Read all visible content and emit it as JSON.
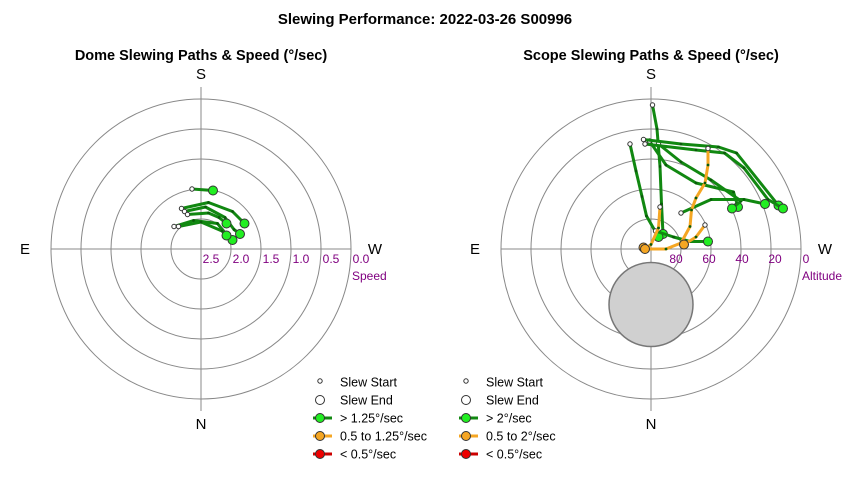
{
  "title": "Slewing Performance: 2022-03-26 S00996",
  "colors": {
    "ring": "#888888",
    "tick_label": "#800080",
    "fast": "#118811",
    "fast_fill": "#22ee22",
    "medium": "#f5a623",
    "medium_fill": "#f5a623",
    "slow": "#cc0000",
    "slow_fill": "#ee0000",
    "obscured_fill": "#d0d0d0",
    "obscured_stroke": "#777777"
  },
  "chart_data": [
    {
      "type": "polar-path",
      "title": "Dome Slewing Paths & Speed (°/sec)",
      "directions": {
        "top": "S",
        "bottom": "N",
        "left": "E",
        "right": "W"
      },
      "radial_label": "Speed",
      "radial_ticks": [
        "2.5",
        "2.0",
        "1.5",
        "1.0",
        "0.5",
        "0.0"
      ],
      "rings": [
        0.2,
        0.4,
        0.6,
        0.8,
        1.0
      ],
      "legend": [
        {
          "label": "Slew Start",
          "kind": "start"
        },
        {
          "label": "Slew End",
          "kind": "end"
        },
        {
          "label": "> 1.25°/sec",
          "kind": "fast"
        },
        {
          "label": "0.5 to 1.25°/sec",
          "kind": "medium"
        },
        {
          "label": "< 0.5°/sec",
          "kind": "slow"
        }
      ],
      "paths": [
        {
          "speed": "fast",
          "points": [
            [
              -0.06,
              -0.4
            ],
            [
              0.08,
              -0.39
            ]
          ]
        },
        {
          "speed": "fast",
          "points": [
            [
              -0.13,
              -0.27
            ],
            [
              0.05,
              -0.31
            ],
            [
              0.21,
              -0.25
            ],
            [
              0.29,
              -0.17
            ]
          ]
        },
        {
          "speed": "fast",
          "points": [
            [
              -0.11,
              -0.25
            ],
            [
              0.03,
              -0.28
            ],
            [
              0.16,
              -0.21
            ],
            [
              0.22,
              -0.13
            ],
            [
              0.26,
              -0.1
            ]
          ]
        },
        {
          "speed": "fast",
          "points": [
            [
              -0.09,
              -0.23
            ],
            [
              0.05,
              -0.24
            ],
            [
              0.12,
              -0.21
            ],
            [
              0.17,
              -0.17
            ]
          ]
        },
        {
          "speed": "fast",
          "points": [
            [
              -0.18,
              -0.15
            ],
            [
              -0.05,
              -0.19
            ],
            [
              0.11,
              -0.17
            ],
            [
              0.18,
              -0.08
            ],
            [
              0.21,
              -0.06
            ]
          ]
        },
        {
          "speed": "fast",
          "points": [
            [
              -0.15,
              -0.15
            ],
            [
              0.0,
              -0.18
            ],
            [
              0.14,
              -0.12
            ],
            [
              0.17,
              -0.09
            ]
          ]
        }
      ]
    },
    {
      "type": "polar-path",
      "title": "Scope Slewing Paths & Speed (°/sec)",
      "directions": {
        "top": "S",
        "bottom": "N",
        "left": "E",
        "right": "W"
      },
      "radial_label": "Altitude",
      "radial_ticks": [
        "80",
        "60",
        "40",
        "20",
        "0"
      ],
      "rings": [
        0.2,
        0.4,
        0.6,
        0.8,
        1.0
      ],
      "obscured_region": {
        "cx": 0.0,
        "cy": 0.37,
        "r": 0.28
      },
      "legend": [
        {
          "label": "Slew Start",
          "kind": "start"
        },
        {
          "label": "Slew End",
          "kind": "end"
        },
        {
          "label": "> 2°/sec",
          "kind": "fast"
        },
        {
          "label": "0.5 to 2°/sec",
          "kind": "medium"
        },
        {
          "label": "< 0.5°/sec",
          "kind": "slow"
        }
      ],
      "paths": [
        {
          "speed": "fast",
          "points": [
            [
              0.01,
              -0.96
            ],
            [
              0.04,
              -0.8
            ],
            [
              0.06,
              -0.55
            ],
            [
              0.07,
              -0.3
            ],
            [
              0.08,
              -0.1
            ]
          ]
        },
        {
          "speed": "fast",
          "points": [
            [
              -0.14,
              -0.7
            ],
            [
              -0.1,
              -0.52
            ],
            [
              -0.06,
              -0.35
            ],
            [
              -0.03,
              -0.22
            ],
            [
              0.05,
              -0.08
            ]
          ]
        },
        {
          "speed": "fast",
          "points": [
            [
              -0.01,
              -0.72
            ],
            [
              0.1,
              -0.56
            ],
            [
              0.3,
              -0.44
            ],
            [
              0.55,
              -0.38
            ],
            [
              0.58,
              -0.28
            ]
          ]
        },
        {
          "speed": "fast",
          "points": [
            [
              0.05,
              -0.7
            ],
            [
              0.2,
              -0.58
            ],
            [
              0.4,
              -0.46
            ],
            [
              0.6,
              -0.32
            ],
            [
              0.54,
              -0.27
            ]
          ]
        },
        {
          "speed": "fast",
          "points": [
            [
              -0.05,
              -0.73
            ],
            [
              0.2,
              -0.7
            ],
            [
              0.45,
              -0.68
            ],
            [
              0.57,
              -0.64
            ],
            [
              0.85,
              -0.29
            ]
          ]
        },
        {
          "speed": "fast",
          "points": [
            [
              -0.04,
              -0.7
            ],
            [
              0.3,
              -0.66
            ],
            [
              0.49,
              -0.64
            ],
            [
              0.62,
              -0.54
            ],
            [
              0.78,
              -0.33
            ],
            [
              0.88,
              -0.27
            ]
          ]
        },
        {
          "speed": "fast",
          "points": [
            [
              0.2,
              -0.24
            ],
            [
              0.4,
              -0.33
            ],
            [
              0.62,
              -0.33
            ],
            [
              0.76,
              -0.3
            ]
          ]
        },
        {
          "speed": "fast",
          "points": [
            [
              0.03,
              -0.12
            ],
            [
              0.15,
              -0.08
            ],
            [
              0.26,
              -0.05
            ],
            [
              0.38,
              -0.05
            ]
          ]
        },
        {
          "speed": "medium",
          "points": [
            [
              0.38,
              -0.67
            ],
            [
              0.38,
              -0.56
            ],
            [
              0.36,
              -0.44
            ],
            [
              0.3,
              -0.34
            ],
            [
              0.27,
              -0.26
            ],
            [
              0.26,
              -0.15
            ],
            [
              0.2,
              -0.04
            ],
            [
              0.1,
              0.0
            ],
            [
              -0.02,
              0.0
            ],
            [
              -0.05,
              -0.01
            ]
          ]
        },
        {
          "speed": "medium",
          "points": [
            [
              0.06,
              -0.28
            ],
            [
              0.05,
              -0.14
            ],
            [
              0.0,
              -0.03
            ],
            [
              -0.04,
              0.0
            ]
          ]
        },
        {
          "speed": "medium",
          "points": [
            [
              0.36,
              -0.16
            ],
            [
              0.3,
              -0.08
            ],
            [
              0.22,
              -0.03
            ]
          ]
        }
      ]
    }
  ]
}
